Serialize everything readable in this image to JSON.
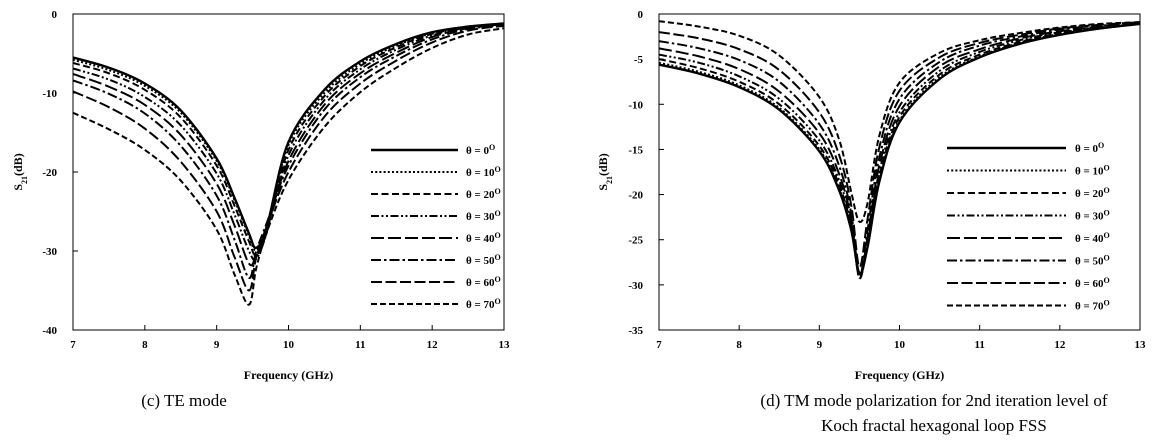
{
  "chart_data": [
    {
      "type": "line",
      "xlabel": "Frequency (GHz)",
      "ylabel": "S21(dB)",
      "xlim": [
        7,
        13
      ],
      "ylim": [
        -40,
        0
      ],
      "xticks": [
        7,
        8,
        9,
        10,
        11,
        12,
        13
      ],
      "yticks": [
        0,
        -10,
        -20,
        -30,
        -40
      ],
      "grid": false,
      "legend_position": "bottom-right",
      "caption": "(c) TE mode",
      "x": [
        7,
        7.5,
        8,
        8.5,
        9,
        9.25,
        9.45,
        9.55,
        9.7,
        10,
        10.5,
        11,
        11.5,
        12,
        12.5,
        13
      ],
      "series": [
        {
          "name": "θ = 0°",
          "dash": "solid",
          "values": [
            -5.5,
            -6.8,
            -8.8,
            -12.2,
            -18.3,
            -23.3,
            -27.8,
            -29.6,
            -26.9,
            -16.2,
            -9.6,
            -6.0,
            -3.8,
            -2.3,
            -1.6,
            -1.2
          ]
        },
        {
          "name": "θ = 10°",
          "dash": "dotted",
          "values": [
            -5.8,
            -7.1,
            -9.1,
            -12.5,
            -18.6,
            -23.6,
            -28.1,
            -29.9,
            -27.2,
            -16.6,
            -10.0,
            -6.3,
            -4.0,
            -2.4,
            -1.6,
            -1.2
          ]
        },
        {
          "name": "θ = 20°",
          "dash": "dash",
          "values": [
            -6.2,
            -7.5,
            -9.6,
            -13.1,
            -19.2,
            -24.3,
            -28.8,
            -30.5,
            -27.5,
            -17.2,
            -10.4,
            -6.6,
            -4.2,
            -2.5,
            -1.7,
            -1.2
          ]
        },
        {
          "name": "θ = 30°",
          "dash": "dashdotdot",
          "values": [
            -6.9,
            -8.3,
            -10.5,
            -14.1,
            -20.2,
            -25.4,
            -30.0,
            -31.0,
            -27.6,
            -17.9,
            -10.9,
            -7.0,
            -4.5,
            -2.7,
            -1.7,
            -1.3
          ]
        },
        {
          "name": "θ = 40°",
          "dash": "longdash",
          "values": [
            -7.6,
            -9.2,
            -11.5,
            -15.3,
            -21.5,
            -26.8,
            -31.6,
            -30.6,
            -27.0,
            -18.6,
            -11.5,
            -7.5,
            -4.9,
            -2.9,
            -1.8,
            -1.3
          ]
        },
        {
          "name": "θ = 50°",
          "dash": "dashdot",
          "values": [
            -8.4,
            -10.1,
            -12.6,
            -16.7,
            -23.0,
            -28.6,
            -33.4,
            -30.0,
            -26.4,
            -19.2,
            -12.1,
            -8.0,
            -5.3,
            -3.2,
            -1.9,
            -1.4
          ]
        },
        {
          "name": "θ = 60°",
          "dash": "longdash2",
          "values": [
            -9.8,
            -11.8,
            -14.5,
            -18.7,
            -25.0,
            -30.8,
            -35.0,
            -30.8,
            -26.8,
            -20.0,
            -13.0,
            -8.8,
            -5.9,
            -3.6,
            -2.1,
            -1.5
          ]
        },
        {
          "name": "θ = 70°",
          "dash": "meddash",
          "values": [
            -12.5,
            -14.6,
            -17.2,
            -21.1,
            -27.3,
            -33.0,
            -36.8,
            -32.2,
            -27.6,
            -21.0,
            -14.3,
            -9.9,
            -6.8,
            -4.3,
            -2.6,
            -1.8
          ]
        }
      ]
    },
    {
      "type": "line",
      "xlabel": "Frequency (GHz)",
      "ylabel": "S21(dB)",
      "xlim": [
        7,
        13
      ],
      "ylim": [
        -35,
        0
      ],
      "xticks": [
        7,
        8,
        9,
        10,
        11,
        12,
        13
      ],
      "yticks": [
        0,
        -5,
        -10,
        -15,
        -20,
        -25,
        -30,
        -35
      ],
      "grid": false,
      "legend_position": "bottom-right",
      "caption": "(d) TM mode polarization for 2nd iteration level of Koch fractal hexagonal loop FSS",
      "x": [
        7,
        7.5,
        8,
        8.5,
        9,
        9.25,
        9.4,
        9.5,
        9.6,
        9.75,
        10,
        10.5,
        11,
        11.5,
        12,
        12.5,
        13
      ],
      "series": [
        {
          "name": "θ = 0°",
          "dash": "solid",
          "values": [
            -5.6,
            -6.6,
            -8.1,
            -10.6,
            -15.2,
            -19.6,
            -24.0,
            -28.7,
            -25.9,
            -18.5,
            -12.0,
            -7.2,
            -4.8,
            -3.3,
            -2.3,
            -1.6,
            -1.1
          ]
        },
        {
          "name": "θ = 10°",
          "dash": "dotted",
          "values": [
            -5.4,
            -6.4,
            -7.9,
            -10.4,
            -15.0,
            -19.4,
            -23.9,
            -28.8,
            -25.8,
            -18.3,
            -11.8,
            -7.0,
            -4.7,
            -3.2,
            -2.2,
            -1.6,
            -1.1
          ]
        },
        {
          "name": "θ = 20°",
          "dash": "dash",
          "values": [
            -5.0,
            -6.0,
            -7.5,
            -10.0,
            -14.6,
            -19.0,
            -23.6,
            -29.0,
            -25.6,
            -17.9,
            -11.4,
            -6.7,
            -4.5,
            -3.1,
            -2.1,
            -1.5,
            -1.1
          ]
        },
        {
          "name": "θ = 30°",
          "dash": "dashdotdot",
          "values": [
            -4.5,
            -5.4,
            -6.9,
            -9.4,
            -14.0,
            -18.5,
            -23.2,
            -29.2,
            -25.3,
            -17.4,
            -10.9,
            -6.3,
            -4.2,
            -2.9,
            -2.0,
            -1.5,
            -1.1
          ]
        },
        {
          "name": "θ = 40°",
          "dash": "longdash",
          "values": [
            -3.8,
            -4.7,
            -6.1,
            -8.6,
            -13.2,
            -17.8,
            -22.8,
            -29.3,
            -24.8,
            -16.7,
            -10.2,
            -5.8,
            -3.9,
            -2.7,
            -1.9,
            -1.4,
            -1.0
          ]
        },
        {
          "name": "θ = 50°",
          "dash": "dashdot",
          "values": [
            -3.0,
            -3.8,
            -5.1,
            -7.5,
            -12.2,
            -16.9,
            -22.2,
            -29.0,
            -24.0,
            -15.8,
            -9.4,
            -5.3,
            -3.5,
            -2.5,
            -1.7,
            -1.3,
            -1.0
          ]
        },
        {
          "name": "θ = 60°",
          "dash": "longdash2",
          "values": [
            -2.0,
            -2.7,
            -3.9,
            -6.2,
            -10.9,
            -15.7,
            -21.3,
            -28.0,
            -22.8,
            -14.7,
            -8.5,
            -4.8,
            -3.2,
            -2.3,
            -1.6,
            -1.2,
            -0.9
          ]
        },
        {
          "name": "θ = 70°",
          "dash": "meddash",
          "values": [
            -0.8,
            -1.4,
            -2.4,
            -4.6,
            -9.2,
            -14.0,
            -19.8,
            -23.0,
            -21.0,
            -13.4,
            -7.6,
            -4.3,
            -2.9,
            -2.1,
            -1.5,
            -1.1,
            -0.9
          ]
        }
      ]
    }
  ]
}
